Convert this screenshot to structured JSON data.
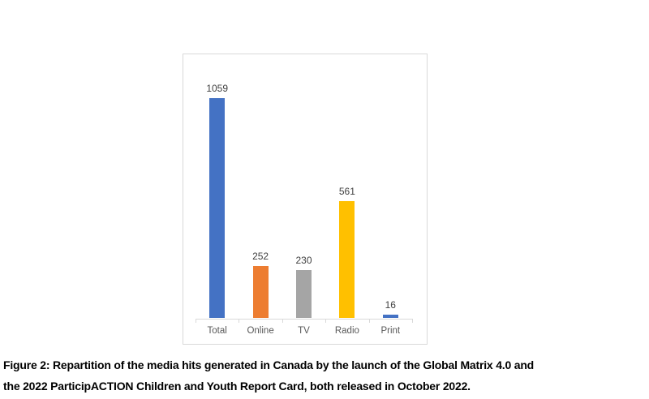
{
  "chart_data": {
    "type": "bar",
    "categories": [
      "Total",
      "Online",
      "TV",
      "Radio",
      "Print"
    ],
    "values": [
      1059,
      252,
      230,
      561,
      16
    ],
    "data_labels": [
      "1059",
      "252",
      "230",
      "561",
      "16"
    ],
    "bar_colors": [
      "#4472C4",
      "#ED7D31",
      "#A5A5A5",
      "#FFC000",
      "#4472C4"
    ],
    "title": "",
    "xlabel": "",
    "ylabel": "",
    "ylim": [
      0,
      1059
    ],
    "grid": false,
    "legend": false,
    "axis_color": "#D9D9D9",
    "data_label_color": "#404040",
    "category_label_color": "#595959"
  },
  "caption": {
    "line1": "Figure 2: Repartition of the media hits generated in Canada by the launch of the Global Matrix 4.0 and",
    "line2": "the 2022 ParticipACTION Children and Youth Report Card, both released in October 2022."
  },
  "colors": {
    "background": "#FFFFFF",
    "chart_border": "#D9D9D9"
  }
}
